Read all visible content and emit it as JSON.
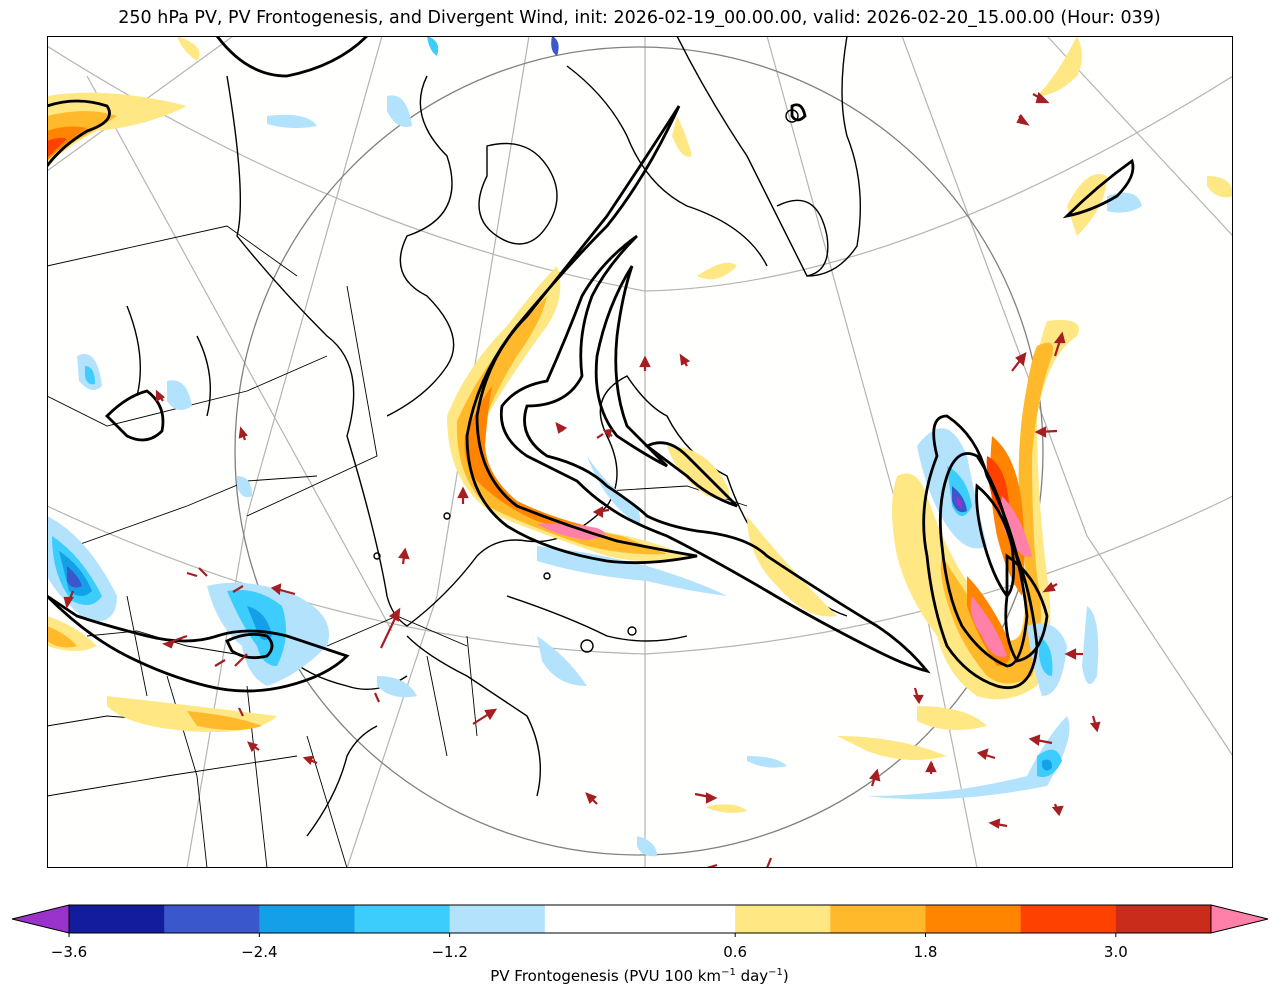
{
  "title": "250 hPa PV, PV Frontogenesis, and Divergent Wind, init: 2026-02-19_00.00.00, valid: 2026-02-20_15.00.00 (Hour: 039)",
  "colorbar": {
    "label_text": "PV Frontogenesis (PVU 100 km",
    "label_exp1": "−1",
    "label_mid": " day",
    "label_exp2": "−1",
    "label_end": ")",
    "ticks": [
      {
        "value": -3.6,
        "label": "−3.6"
      },
      {
        "value": -2.4,
        "label": "−2.4"
      },
      {
        "value": -1.2,
        "label": "−1.2"
      },
      {
        "value": 0.6,
        "label": "0.6"
      },
      {
        "value": 1.8,
        "label": "1.8"
      },
      {
        "value": 3.0,
        "label": "3.0"
      }
    ],
    "levels": [
      -3.6,
      -3.0,
      -2.4,
      -1.8,
      -1.2,
      -0.6,
      0.6,
      1.2,
      1.8,
      2.4,
      3.0,
      3.6
    ],
    "colors": [
      "#121c9c",
      "#3a57cc",
      "#14a0e8",
      "#3ccdfc",
      "#b3e2fd",
      "#ffffff",
      "#ffe783",
      "#ffb92b",
      "#ff8400",
      "#ff4100",
      "#c92c1b"
    ],
    "under_color": "#9933cc",
    "over_color": "#ff80a8"
  },
  "styles": {
    "arrow_color": "#a41e22",
    "pv_contour_color": "#000000",
    "coast_color": "#000000",
    "grid_color": "#b4b4b4",
    "circle_color": "#808080"
  }
}
